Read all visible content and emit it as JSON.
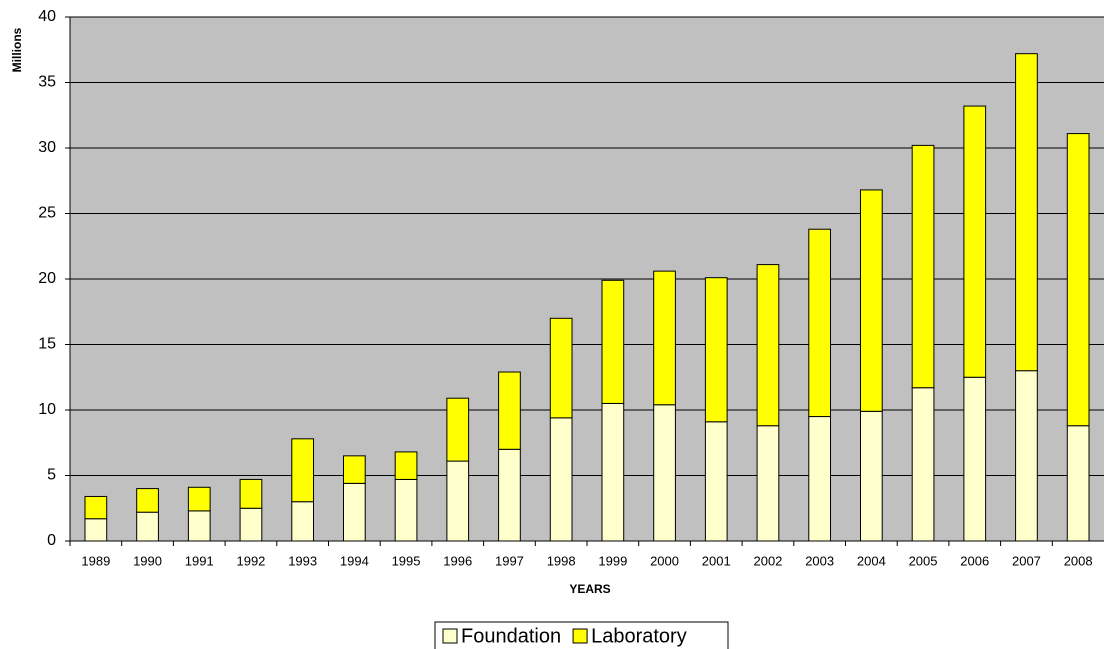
{
  "chart_data": {
    "type": "stacked_bar",
    "y_label": "Millions",
    "x_label": "YEARS",
    "categories": [
      "1989",
      "1990",
      "1991",
      "1992",
      "1993",
      "1994",
      "1995",
      "1996",
      "1997",
      "1998",
      "1999",
      "2000",
      "2001",
      "2002",
      "2003",
      "2004",
      "2005",
      "2006",
      "2007",
      "2008"
    ],
    "series": [
      {
        "name": "Foundation",
        "color": "#ffffcc",
        "values": [
          1.7,
          2.2,
          2.3,
          2.5,
          3.0,
          4.4,
          4.7,
          6.1,
          7.0,
          9.4,
          10.5,
          10.4,
          9.1,
          8.8,
          9.5,
          9.9,
          11.7,
          12.5,
          13.0,
          8.8
        ]
      },
      {
        "name": "Laboratory",
        "color": "#ffff00",
        "values": [
          1.7,
          1.8,
          1.8,
          2.2,
          4.8,
          2.1,
          2.1,
          4.8,
          5.9,
          7.6,
          9.4,
          10.2,
          11.0,
          12.3,
          14.3,
          16.9,
          18.5,
          20.7,
          24.2,
          22.3
        ]
      }
    ],
    "ylim": [
      0,
      40
    ],
    "yticks": [
      0,
      5,
      10,
      15,
      20,
      25,
      30,
      35,
      40
    ],
    "grid": true,
    "legend": "bottom"
  }
}
